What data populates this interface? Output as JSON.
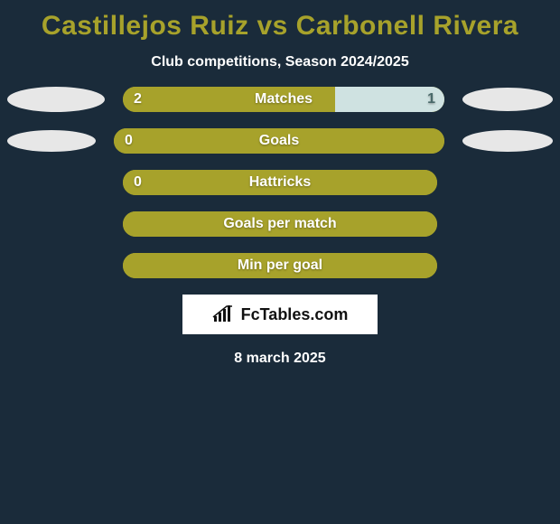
{
  "background_color": "#1a2b3a",
  "title": {
    "text": "Castillejos Ruiz vs Carbonell Rivera",
    "color": "#a7a22b",
    "fontsize": 30,
    "fontweight": 800
  },
  "subtitle": {
    "text": "Club competitions, Season 2024/2025",
    "color": "#ffffff",
    "fontsize": 16,
    "fontweight": 600
  },
  "legend_badges": {
    "left_color": "#e7e7e7",
    "right_color": "#e7e7e7"
  },
  "bar_style": {
    "height": 28,
    "radius": 14,
    "border_color": "#a7a22b",
    "border_width": 2,
    "fill_left_color": "#a7a22b",
    "fill_right_color": "#cfe2e1",
    "label_fontsize": 16,
    "label_color": "#ffffff"
  },
  "rows": [
    {
      "label": "Matches",
      "left_value": "2",
      "right_value": "1",
      "left_fill_pct": 66,
      "right_fill_pct": 34,
      "show_left_badge": true,
      "show_right_badge": true,
      "left_badge_w": 108,
      "left_badge_h": 28,
      "right_badge_w": 100,
      "right_badge_h": 26
    },
    {
      "label": "Goals",
      "left_value": "0",
      "right_value": "",
      "left_fill_pct": 100,
      "right_fill_pct": 0,
      "show_left_badge": true,
      "show_right_badge": true,
      "left_badge_w": 98,
      "left_badge_h": 24,
      "right_badge_w": 100,
      "right_badge_h": 24
    },
    {
      "label": "Hattricks",
      "left_value": "0",
      "right_value": "",
      "left_fill_pct": 100,
      "right_fill_pct": 0,
      "show_left_badge": false,
      "show_right_badge": false,
      "left_badge_w": 0,
      "left_badge_h": 0,
      "right_badge_w": 0,
      "right_badge_h": 0
    },
    {
      "label": "Goals per match",
      "left_value": "",
      "right_value": "",
      "left_fill_pct": 100,
      "right_fill_pct": 0,
      "show_left_badge": false,
      "show_right_badge": false,
      "left_badge_w": 0,
      "left_badge_h": 0,
      "right_badge_w": 0,
      "right_badge_h": 0
    },
    {
      "label": "Min per goal",
      "left_value": "",
      "right_value": "",
      "left_fill_pct": 100,
      "right_fill_pct": 0,
      "show_left_badge": false,
      "show_right_badge": false,
      "left_badge_w": 0,
      "left_badge_h": 0,
      "right_badge_w": 0,
      "right_badge_h": 0
    }
  ],
  "brand": {
    "text": "FcTables.com",
    "box_bg": "#ffffff",
    "text_color": "#111111",
    "icon_color": "#111111"
  },
  "date": {
    "text": "8 march 2025",
    "color": "#ffffff",
    "fontsize": 16,
    "fontweight": 700
  }
}
